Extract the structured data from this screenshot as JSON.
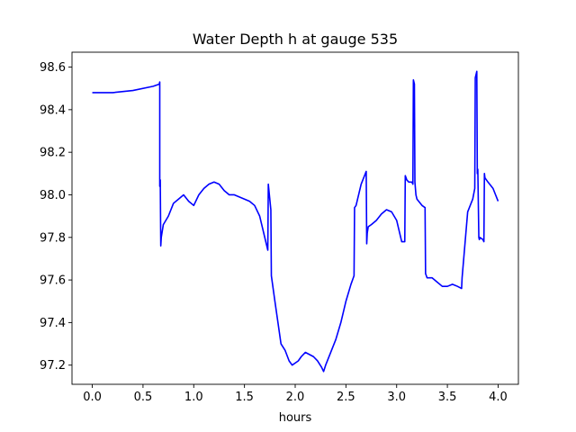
{
  "chart_data": {
    "type": "line",
    "title": "Water Depth h at gauge 535",
    "xlabel": "hours",
    "ylabel": "",
    "xlim": [
      -0.2,
      4.2
    ],
    "ylim": [
      97.11,
      98.67
    ],
    "xticks": [
      "0.0",
      "0.5",
      "1.0",
      "1.5",
      "2.0",
      "2.5",
      "3.0",
      "3.5",
      "4.0"
    ],
    "yticks": [
      "97.2",
      "97.4",
      "97.6",
      "97.8",
      "98.0",
      "98.2",
      "98.4",
      "98.6"
    ],
    "grid": false,
    "legend": "none",
    "series": [
      {
        "color": "#0000ff",
        "x": [
          0.0,
          0.2,
          0.4,
          0.6,
          0.66,
          0.665,
          0.665,
          0.67,
          0.675,
          0.68,
          0.7,
          0.75,
          0.8,
          0.85,
          0.9,
          0.95,
          1.0,
          1.05,
          1.1,
          1.15,
          1.2,
          1.25,
          1.3,
          1.35,
          1.4,
          1.45,
          1.5,
          1.55,
          1.6,
          1.65,
          1.7,
          1.73,
          1.735,
          1.76,
          1.765,
          1.8,
          1.83,
          1.86,
          1.9,
          1.94,
          1.97,
          2.0,
          2.03,
          2.06,
          2.1,
          2.14,
          2.18,
          2.22,
          2.26,
          2.28,
          2.3,
          2.35,
          2.4,
          2.45,
          2.5,
          2.55,
          2.58,
          2.585,
          2.6,
          2.65,
          2.7,
          2.705,
          2.71,
          2.72,
          2.75,
          2.8,
          2.85,
          2.9,
          2.95,
          3.0,
          3.05,
          3.08,
          3.085,
          3.1,
          3.12,
          3.15,
          3.16,
          3.165,
          3.17,
          3.175,
          3.18,
          3.185,
          3.19,
          3.2,
          3.25,
          3.28,
          3.285,
          3.3,
          3.35,
          3.4,
          3.45,
          3.5,
          3.55,
          3.6,
          3.64,
          3.645,
          3.7,
          3.75,
          3.77,
          3.775,
          3.79,
          3.795,
          3.8,
          3.81,
          3.815,
          3.82,
          3.85,
          3.86,
          3.865,
          3.87,
          3.9,
          3.95,
          4.0
        ],
        "y": [
          98.48,
          98.48,
          98.49,
          98.51,
          98.52,
          98.53,
          98.04,
          98.07,
          97.76,
          97.8,
          97.86,
          97.9,
          97.96,
          97.98,
          98.0,
          97.97,
          97.95,
          98.0,
          98.03,
          98.05,
          98.06,
          98.05,
          98.02,
          98.0,
          98.0,
          97.99,
          97.98,
          97.97,
          97.95,
          97.9,
          97.8,
          97.74,
          98.05,
          97.93,
          97.62,
          97.5,
          97.4,
          97.3,
          97.27,
          97.22,
          97.2,
          97.21,
          97.22,
          97.24,
          97.26,
          97.25,
          97.24,
          97.22,
          97.19,
          97.17,
          97.2,
          97.26,
          97.32,
          97.4,
          97.5,
          97.58,
          97.62,
          97.94,
          97.95,
          98.05,
          98.11,
          97.77,
          97.82,
          97.85,
          97.86,
          97.88,
          97.91,
          97.93,
          97.92,
          97.88,
          97.78,
          97.78,
          98.09,
          98.07,
          98.06,
          98.06,
          98.05,
          98.54,
          98.53,
          98.52,
          98.06,
          98.03,
          98.0,
          97.98,
          97.95,
          97.94,
          97.63,
          97.61,
          97.61,
          97.59,
          97.57,
          97.57,
          97.58,
          97.57,
          97.56,
          97.61,
          97.92,
          97.98,
          98.03,
          98.55,
          98.58,
          98.1,
          98.12,
          97.8,
          97.79,
          97.8,
          97.79,
          97.78,
          98.1,
          98.08,
          98.06,
          98.03,
          97.97
        ]
      }
    ]
  }
}
